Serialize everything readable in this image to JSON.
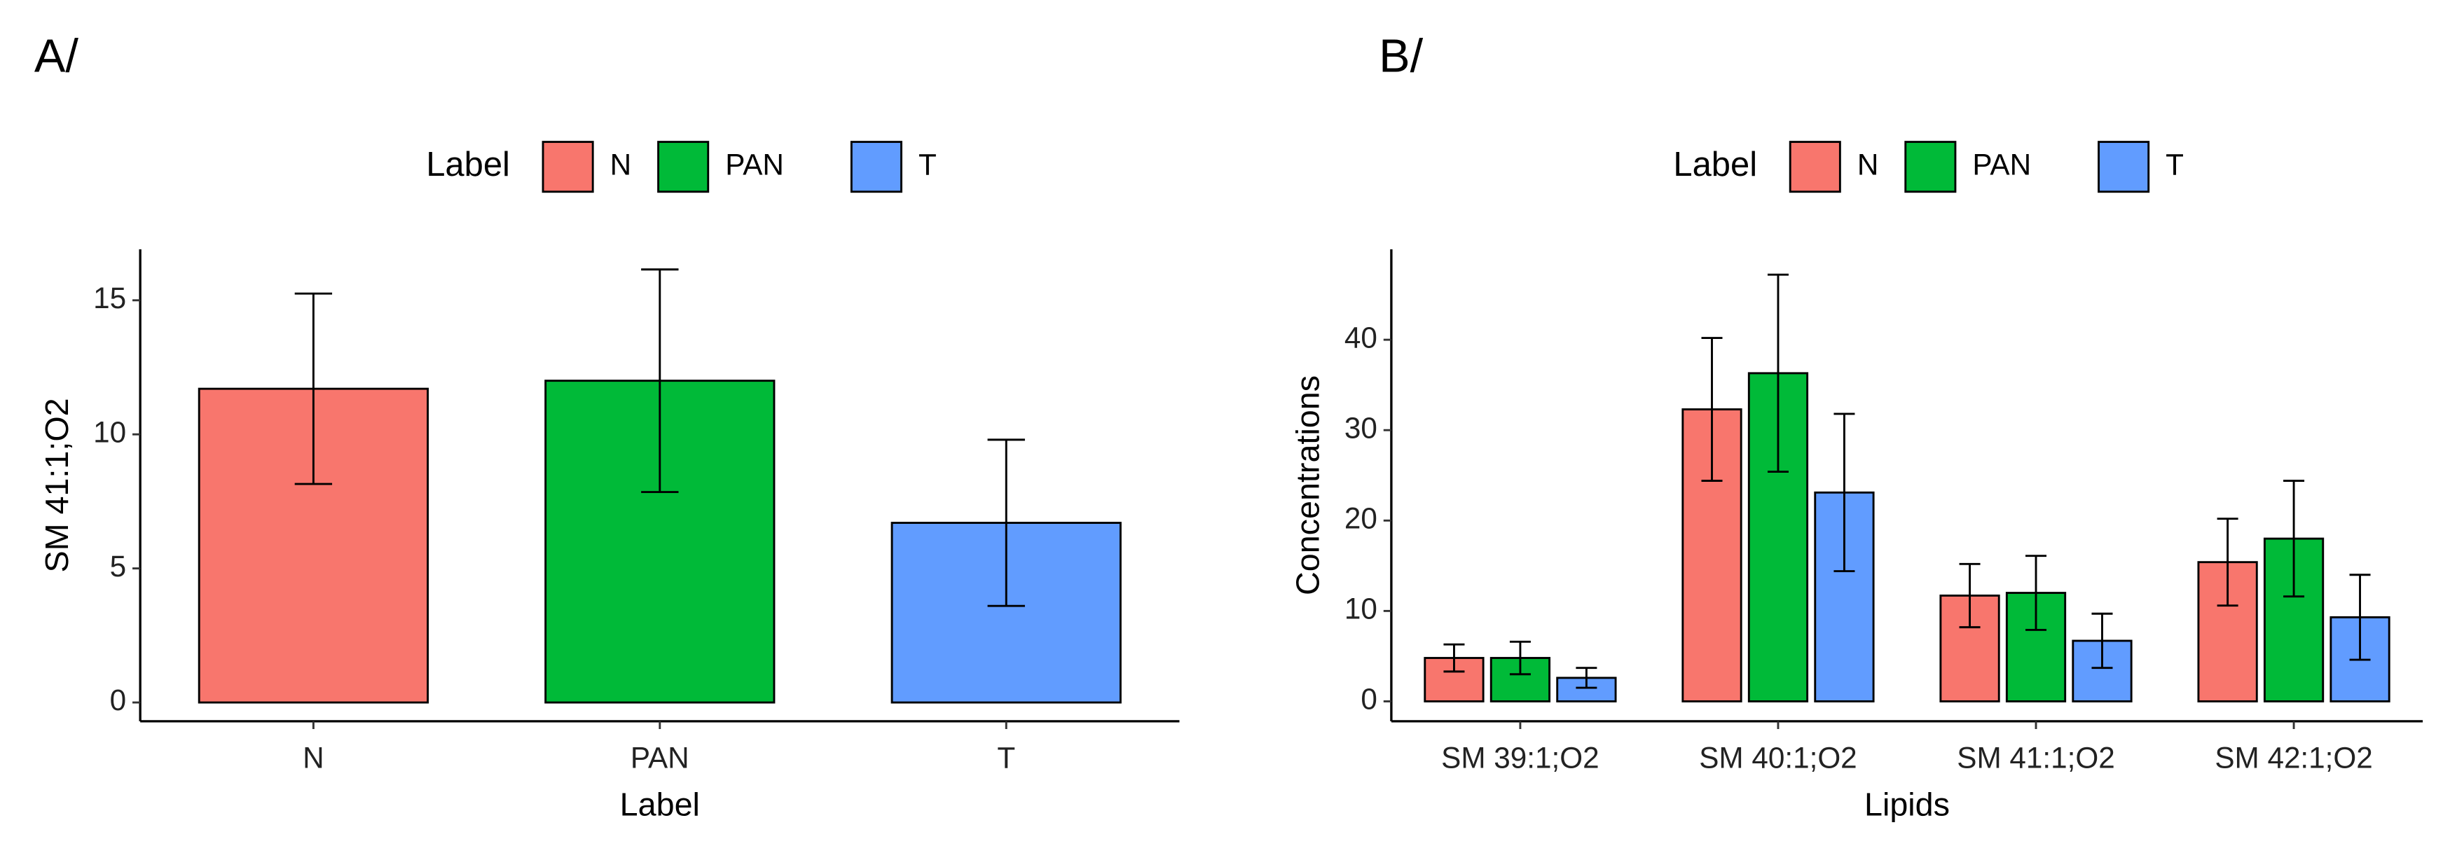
{
  "chart_data": [
    {
      "type": "bar",
      "panel_label": "A/",
      "x_label": "Label",
      "y_label": "SM 41:1;O2",
      "legend_title": "Label",
      "categories": [
        "N",
        "PAN",
        "T"
      ],
      "values": [
        11.7,
        12.0,
        6.7
      ],
      "errors": [
        3.55,
        4.15,
        3.1
      ],
      "colors": [
        "#F8766D",
        "#00BA38",
        "#619CFF"
      ],
      "ylim": [
        -0.7,
        16.9
      ],
      "yticks": [
        0,
        5,
        10,
        15
      ]
    },
    {
      "type": "grouped_bar",
      "panel_label": "B/",
      "x_label": "Lipids",
      "y_label": "Concentrations",
      "legend_title": "Label",
      "categories": [
        "SM 39:1;O2",
        "SM 40:1;O2",
        "SM 41:1;O2",
        "SM 42:1;O2"
      ],
      "series": [
        {
          "name": "N",
          "color": "#F8766D",
          "values": [
            4.8,
            32.3,
            11.7,
            15.4
          ],
          "errors": [
            1.5,
            7.9,
            3.5,
            4.8
          ]
        },
        {
          "name": "PAN",
          "color": "#00BA38",
          "values": [
            4.8,
            36.3,
            12.0,
            18.0
          ],
          "errors": [
            1.8,
            10.9,
            4.1,
            6.4
          ]
        },
        {
          "name": "T",
          "color": "#619CFF",
          "values": [
            2.6,
            23.1,
            6.7,
            9.3
          ],
          "errors": [
            1.1,
            8.7,
            3.0,
            4.7
          ]
        }
      ],
      "ylim": [
        -2.2,
        50
      ],
      "yticks": [
        0,
        10,
        20,
        30,
        40
      ]
    }
  ]
}
